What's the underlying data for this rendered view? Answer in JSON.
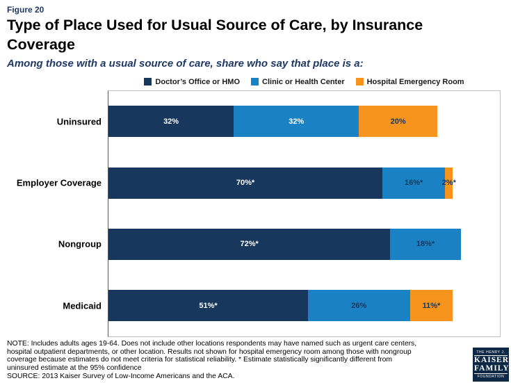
{
  "header": {
    "figure_label": "Figure 20",
    "title": "Type of Place Used for Usual Source of Care, by Insurance Coverage",
    "subtitle": "Among those with a usual source of care, share who say that place is a:"
  },
  "colors": {
    "navy": "#17375D",
    "blue": "#1B81C5",
    "orange": "#F6941E"
  },
  "chart_data": {
    "type": "bar",
    "orientation": "horizontal",
    "stacked": true,
    "legend_position": "top",
    "xlim": [
      0,
      100
    ],
    "value_unit": "%",
    "categories": [
      "Uninsured",
      "Employer Coverage",
      "Nongroup",
      "Medicaid"
    ],
    "series": [
      {
        "name": "Doctor’s Office or HMO",
        "color": "#17375D",
        "values": [
          32,
          70,
          72,
          51
        ],
        "labels": [
          "32%",
          "70%*",
          "72%*",
          "51%*"
        ],
        "label_colors": [
          "#FFFFFF",
          "#FFFFFF",
          "#FFFFFF",
          "#FFFFFF"
        ]
      },
      {
        "name": "Clinic or Health Center",
        "color": "#1B81C5",
        "values": [
          32,
          16,
          18,
          26
        ],
        "labels": [
          "32%",
          "16%*",
          "18%*",
          "26%"
        ],
        "label_colors": [
          "#FFFFFF",
          "#17375D",
          "#17375D",
          "#17375D"
        ]
      },
      {
        "name": "Hospital Emergency Room",
        "color": "#F6941E",
        "values": [
          20,
          2,
          null,
          11
        ],
        "labels": [
          "20%",
          "2%*",
          "",
          "11%*"
        ],
        "label_colors": [
          "#17375D",
          "#17375D",
          "",
          "#17375D"
        ]
      }
    ]
  },
  "footer": {
    "note_lines": [
      "NOTE: Includes adults ages 19-64. Does not include other locations respondents may have named such as urgent care centers,",
      "hospital outpatient departments,  or other location. Results not shown for hospital emergency room among those with nongroup",
      "coverage because estimates do not meet criteria for statistical reliability. * Estimate statistically significantly different from",
      "uninsured estimate  at the 95% confidence"
    ],
    "source": "SOURCE: 2013 Kaiser Survey of Low-Income Americans and the ACA."
  },
  "logo": {
    "line1": "THE HENRY J.",
    "line2": "KAISER",
    "line3": "FAMILY",
    "line4": "FOUNDATION"
  }
}
